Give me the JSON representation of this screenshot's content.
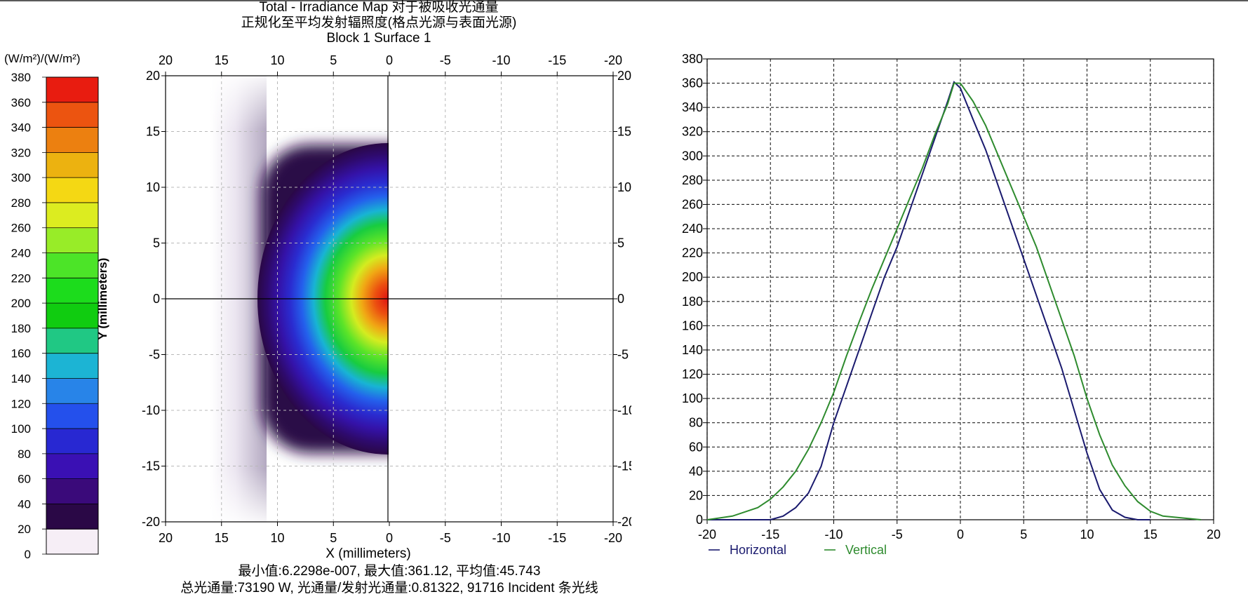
{
  "map": {
    "title_line1": "Total - Irradiance Map 对于被吸收光通量",
    "title_line2": "正规化至平均发射辐照度(格点光源与表面光源)",
    "title_line3": "Block 1 Surface 1",
    "colorbar_unit": "(W/m²)/(W/m²)",
    "colorbar_ticks": [
      "0",
      "20",
      "40",
      "60",
      "80",
      "100",
      "120",
      "140",
      "160",
      "180",
      "200",
      "220",
      "240",
      "260",
      "280",
      "300",
      "320",
      "340",
      "360",
      "380"
    ],
    "colorbar_colors": [
      "#f6eef6",
      "#2a0846",
      "#3a0a7a",
      "#3a10b4",
      "#2828d2",
      "#2450ec",
      "#2884e8",
      "#1cb4d4",
      "#20c884",
      "#10cc10",
      "#1cdc1c",
      "#4ce428",
      "#98ec28",
      "#dcec20",
      "#f4d814",
      "#ecb210",
      "#ec8010",
      "#ec5410",
      "#e81c10"
    ],
    "x_ticks": [
      "20",
      "15",
      "10",
      "5",
      "0",
      "-5",
      "-10",
      "-15",
      "-20"
    ],
    "y_ticks": [
      "20",
      "15",
      "10",
      "5",
      "0",
      "-5",
      "-10",
      "-15",
      "-20"
    ],
    "xlabel": "X (millimeters)",
    "ylabel": "Y (millimeters)",
    "footer_line1": "最小值:6.2298e-007, 最大值:361.12, 平均值:45.743",
    "footer_line2": "总光通量:73190 W, 光通量/发射光通量:0.81322, 91716 Incident 条光线"
  },
  "chart_data": [
    {
      "type": "heatmap",
      "title": "Total - Irradiance Map 对于被吸收光通量 / 正规化至平均发射辐照度(格点光源与表面光源) / Block 1 Surface 1",
      "xlabel": "X (millimeters)",
      "ylabel": "Y (millimeters)",
      "xlim": [
        20,
        -20
      ],
      "ylim": [
        -20,
        20
      ],
      "colorbar_range": [
        0,
        380
      ],
      "colorbar_unit": "(W/m²)/(W/m²)",
      "min": 6.2298e-07,
      "max": 361.12,
      "mean": 45.743,
      "peak_at": [
        0,
        0
      ],
      "grid": true
    },
    {
      "type": "line",
      "xlabel": "",
      "ylabel": "",
      "xlim": [
        -20,
        20
      ],
      "ylim": [
        0,
        380
      ],
      "x_ticks": [
        "-20",
        "-15",
        "-10",
        "-5",
        "0",
        "5",
        "10",
        "15",
        "20"
      ],
      "y_ticks": [
        "0",
        "20",
        "40",
        "60",
        "80",
        "100",
        "120",
        "140",
        "160",
        "180",
        "200",
        "220",
        "240",
        "260",
        "280",
        "300",
        "320",
        "340",
        "360",
        "380"
      ],
      "grid": true,
      "legend": "bottom-left",
      "series": [
        {
          "name": "Horizontal",
          "color": "#1a1a6e",
          "x": [
            -20,
            -17,
            -15,
            -14,
            -13,
            -12,
            -11,
            -10,
            -9,
            -8,
            -7,
            -6,
            -5,
            -4,
            -3,
            -2,
            -1,
            -0.5,
            0,
            1,
            2,
            3,
            4,
            5,
            6,
            7,
            8,
            9,
            10,
            11,
            12,
            13,
            14,
            15
          ],
          "y": [
            0,
            0,
            0,
            3,
            10,
            22,
            44,
            80,
            110,
            140,
            170,
            200,
            225,
            255,
            285,
            315,
            345,
            361,
            356,
            330,
            305,
            275,
            245,
            215,
            185,
            155,
            125,
            90,
            55,
            25,
            8,
            2,
            0,
            0
          ]
        },
        {
          "name": "Vertical",
          "color": "#2e8b2e",
          "x": [
            -20,
            -18,
            -16,
            -15,
            -14,
            -13,
            -12,
            -11,
            -10,
            -9,
            -8,
            -7,
            -6,
            -5,
            -4,
            -3,
            -2,
            -1,
            -0.5,
            0,
            1,
            2,
            3,
            4,
            5,
            6,
            7,
            8,
            9,
            10,
            11,
            12,
            13,
            14,
            15,
            16,
            18,
            19
          ],
          "y": [
            0,
            3,
            10,
            17,
            27,
            40,
            58,
            80,
            105,
            135,
            163,
            190,
            215,
            240,
            265,
            290,
            318,
            343,
            360,
            360,
            345,
            325,
            300,
            275,
            250,
            225,
            195,
            165,
            135,
            100,
            70,
            45,
            28,
            15,
            7,
            3,
            1,
            0
          ]
        }
      ]
    }
  ]
}
